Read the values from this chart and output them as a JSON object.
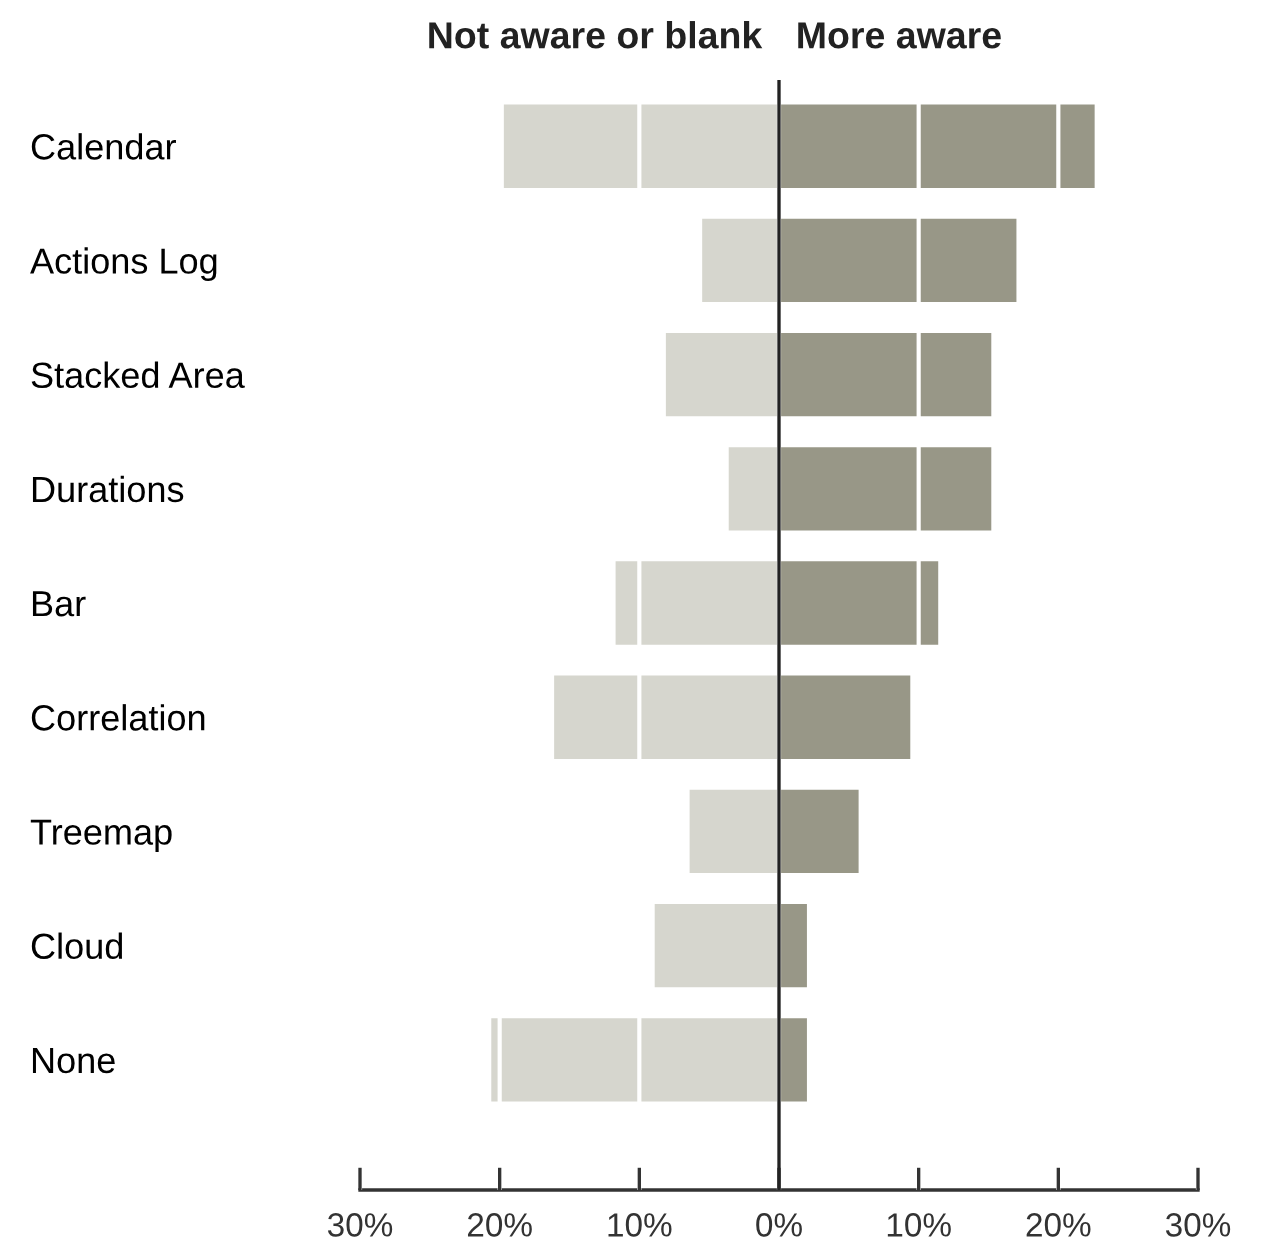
{
  "chart_data": {
    "type": "bar",
    "orientation": "horizontal",
    "stacked": true,
    "categories": [
      "Calendar",
      "Actions Log",
      "Stacked Area",
      "Durations",
      "Bar",
      "Correlation",
      "Treemap",
      "Cloud",
      "None"
    ],
    "series": [
      {
        "name": "Not aware or blank",
        "color": "#d6d6ce",
        "values": [
          -19.7,
          -5.5,
          -8.1,
          -3.6,
          -11.7,
          -16.1,
          -6.4,
          -8.9,
          -20.6
        ]
      },
      {
        "name": "More aware",
        "color": "#989787",
        "values": [
          22.6,
          17.0,
          15.2,
          15.2,
          11.4,
          9.4,
          5.7,
          2.0,
          2.0
        ]
      }
    ],
    "xlim": [
      -30,
      30
    ],
    "xticks": [
      {
        "value": -30,
        "label": "30%"
      },
      {
        "value": -20,
        "label": "20%"
      },
      {
        "value": -10,
        "label": "10%"
      },
      {
        "value": 0,
        "label": "0%"
      },
      {
        "value": 10,
        "label": "10%"
      },
      {
        "value": 20,
        "label": "20%"
      },
      {
        "value": 30,
        "label": "30%"
      }
    ],
    "grid": "x",
    "ref_lines": [
      {
        "axis": "x",
        "value": 0,
        "color": "#222222"
      }
    ]
  }
}
